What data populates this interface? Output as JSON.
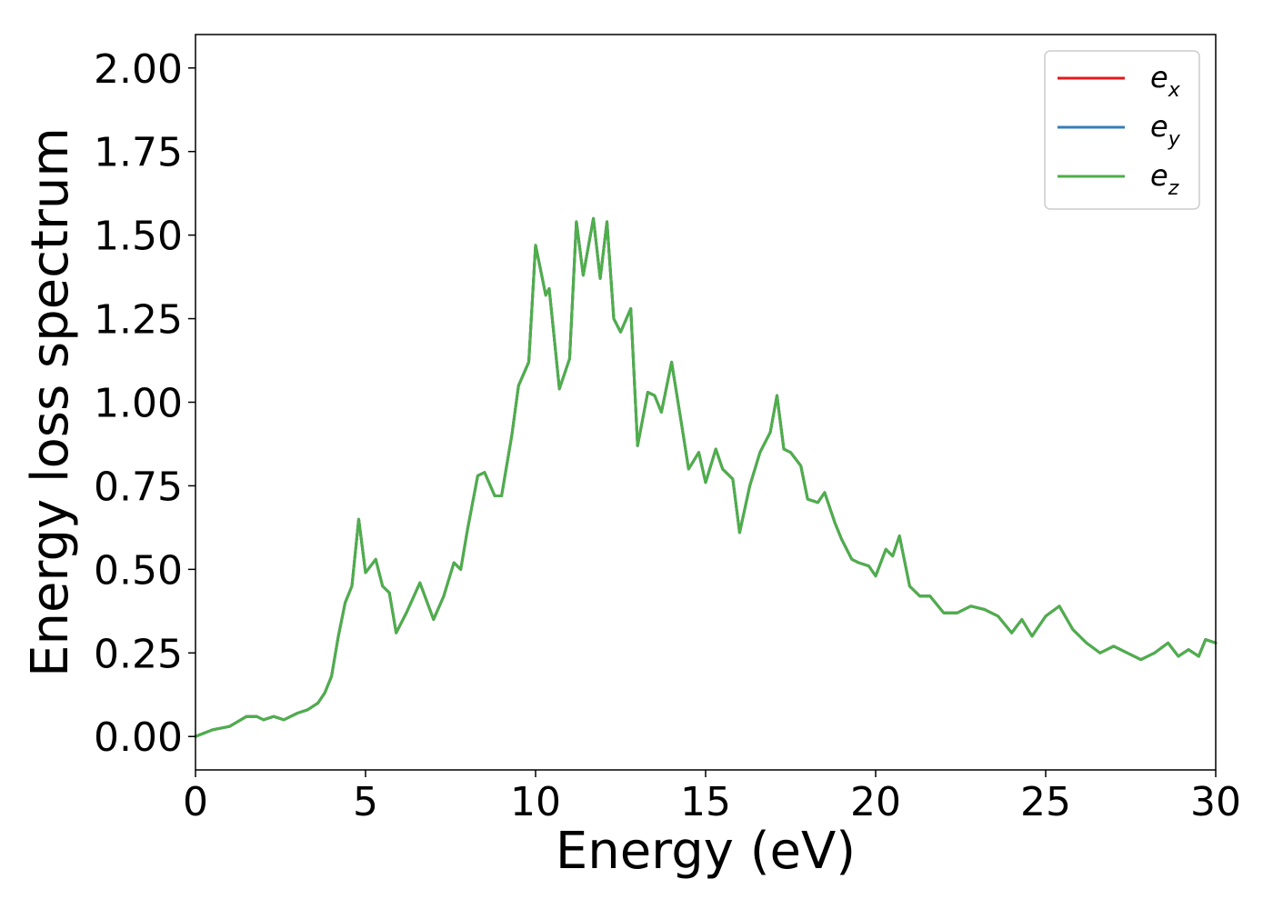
{
  "chart_data": {
    "type": "line",
    "title": "",
    "xlabel": "Energy (eV)",
    "ylabel": "Energy loss spectrum",
    "xlim": [
      0,
      30
    ],
    "ylim": [
      -0.1,
      2.1
    ],
    "xticks": [
      0,
      5,
      10,
      15,
      20,
      25,
      30
    ],
    "xtick_labels": [
      "0",
      "5",
      "10",
      "15",
      "20",
      "25",
      "30"
    ],
    "yticks": [
      0.0,
      0.25,
      0.5,
      0.75,
      1.0,
      1.25,
      1.5,
      1.75,
      2.0
    ],
    "ytick_labels": [
      "0.00",
      "0.25",
      "0.50",
      "0.75",
      "1.00",
      "1.25",
      "1.50",
      "1.75",
      "2.00"
    ],
    "grid": false,
    "legend_position": "top-right",
    "x": [
      0,
      0.5,
      1.0,
      1.5,
      1.8,
      2.0,
      2.3,
      2.6,
      3.0,
      3.3,
      3.6,
      3.8,
      4.0,
      4.2,
      4.4,
      4.6,
      4.8,
      5.0,
      5.3,
      5.5,
      5.7,
      5.9,
      6.2,
      6.6,
      7.0,
      7.3,
      7.6,
      7.8,
      8.0,
      8.3,
      8.5,
      8.8,
      9.0,
      9.3,
      9.5,
      9.8,
      10.0,
      10.3,
      10.4,
      10.7,
      11.0,
      11.2,
      11.4,
      11.7,
      11.9,
      12.1,
      12.3,
      12.5,
      12.8,
      13.0,
      13.3,
      13.5,
      13.7,
      14.0,
      14.3,
      14.5,
      14.8,
      15.0,
      15.3,
      15.5,
      15.8,
      16.0,
      16.3,
      16.6,
      16.9,
      17.1,
      17.3,
      17.5,
      17.8,
      18.0,
      18.3,
      18.5,
      18.8,
      19.0,
      19.3,
      19.5,
      19.8,
      20.0,
      20.3,
      20.5,
      20.7,
      21.0,
      21.3,
      21.6,
      22.0,
      22.4,
      22.8,
      23.2,
      23.6,
      24.0,
      24.3,
      24.6,
      25.0,
      25.4,
      25.8,
      26.2,
      26.6,
      27.0,
      27.4,
      27.8,
      28.2,
      28.6,
      28.9,
      29.2,
      29.5,
      29.7,
      30.0
    ],
    "series": [
      {
        "name": "e_x",
        "label_base": "e",
        "label_sub": "x",
        "color": "#e41a1c",
        "values": [
          0.0,
          0.02,
          0.03,
          0.06,
          0.06,
          0.05,
          0.06,
          0.05,
          0.07,
          0.08,
          0.1,
          0.13,
          0.18,
          0.3,
          0.4,
          0.45,
          0.65,
          0.49,
          0.53,
          0.45,
          0.43,
          0.31,
          0.37,
          0.46,
          0.35,
          0.42,
          0.52,
          0.5,
          0.62,
          0.78,
          0.79,
          0.72,
          0.72,
          0.9,
          1.05,
          1.12,
          1.47,
          1.32,
          1.34,
          1.04,
          1.13,
          1.54,
          1.38,
          1.55,
          1.37,
          1.54,
          1.25,
          1.21,
          1.28,
          0.87,
          1.03,
          1.02,
          0.97,
          1.12,
          0.93,
          0.8,
          0.85,
          0.76,
          0.86,
          0.8,
          0.77,
          0.61,
          0.75,
          0.85,
          0.91,
          1.02,
          0.86,
          0.85,
          0.81,
          0.71,
          0.7,
          0.73,
          0.64,
          0.59,
          0.53,
          0.52,
          0.51,
          0.48,
          0.56,
          0.54,
          0.6,
          0.45,
          0.42,
          0.42,
          0.37,
          0.37,
          0.39,
          0.38,
          0.36,
          0.31,
          0.35,
          0.3,
          0.36,
          0.39,
          0.32,
          0.28,
          0.25,
          0.27,
          0.25,
          0.23,
          0.25,
          0.28,
          0.24,
          0.26,
          0.24,
          0.29,
          0.28
        ]
      },
      {
        "name": "e_y",
        "label_base": "e",
        "label_sub": "y",
        "color": "#377eb8",
        "values": [
          0.0,
          0.02,
          0.03,
          0.06,
          0.06,
          0.05,
          0.06,
          0.05,
          0.07,
          0.08,
          0.1,
          0.13,
          0.18,
          0.3,
          0.4,
          0.45,
          0.65,
          0.49,
          0.53,
          0.45,
          0.43,
          0.31,
          0.37,
          0.46,
          0.35,
          0.42,
          0.52,
          0.5,
          0.62,
          0.78,
          0.79,
          0.72,
          0.72,
          0.9,
          1.05,
          1.12,
          1.47,
          1.32,
          1.34,
          1.04,
          1.13,
          1.54,
          1.38,
          1.55,
          1.37,
          1.54,
          1.25,
          1.21,
          1.28,
          0.87,
          1.03,
          1.02,
          0.97,
          1.12,
          0.93,
          0.8,
          0.85,
          0.76,
          0.86,
          0.8,
          0.77,
          0.61,
          0.75,
          0.85,
          0.91,
          1.02,
          0.86,
          0.85,
          0.81,
          0.71,
          0.7,
          0.73,
          0.64,
          0.59,
          0.53,
          0.52,
          0.51,
          0.48,
          0.56,
          0.54,
          0.6,
          0.45,
          0.42,
          0.42,
          0.37,
          0.37,
          0.39,
          0.38,
          0.36,
          0.31,
          0.35,
          0.3,
          0.36,
          0.39,
          0.32,
          0.28,
          0.25,
          0.27,
          0.25,
          0.23,
          0.25,
          0.28,
          0.24,
          0.26,
          0.24,
          0.29,
          0.28
        ]
      },
      {
        "name": "e_z",
        "label_base": "e",
        "label_sub": "z",
        "color": "#4daf4a",
        "values": [
          0.0,
          0.02,
          0.03,
          0.06,
          0.06,
          0.05,
          0.06,
          0.05,
          0.07,
          0.08,
          0.1,
          0.13,
          0.18,
          0.3,
          0.4,
          0.45,
          0.65,
          0.49,
          0.53,
          0.45,
          0.43,
          0.31,
          0.37,
          0.46,
          0.35,
          0.42,
          0.52,
          0.5,
          0.62,
          0.78,
          0.79,
          0.72,
          0.72,
          0.9,
          1.05,
          1.12,
          1.47,
          1.32,
          1.34,
          1.04,
          1.13,
          1.54,
          1.38,
          1.55,
          1.37,
          1.54,
          1.25,
          1.21,
          1.28,
          0.87,
          1.03,
          1.02,
          0.97,
          1.12,
          0.93,
          0.8,
          0.85,
          0.76,
          0.86,
          0.8,
          0.77,
          0.61,
          0.75,
          0.85,
          0.91,
          1.02,
          0.86,
          0.85,
          0.81,
          0.71,
          0.7,
          0.73,
          0.64,
          0.59,
          0.53,
          0.52,
          0.51,
          0.48,
          0.56,
          0.54,
          0.6,
          0.45,
          0.42,
          0.42,
          0.37,
          0.37,
          0.39,
          0.38,
          0.36,
          0.31,
          0.35,
          0.3,
          0.36,
          0.39,
          0.32,
          0.28,
          0.25,
          0.27,
          0.25,
          0.23,
          0.25,
          0.28,
          0.24,
          0.26,
          0.24,
          0.29,
          0.28
        ]
      }
    ]
  }
}
